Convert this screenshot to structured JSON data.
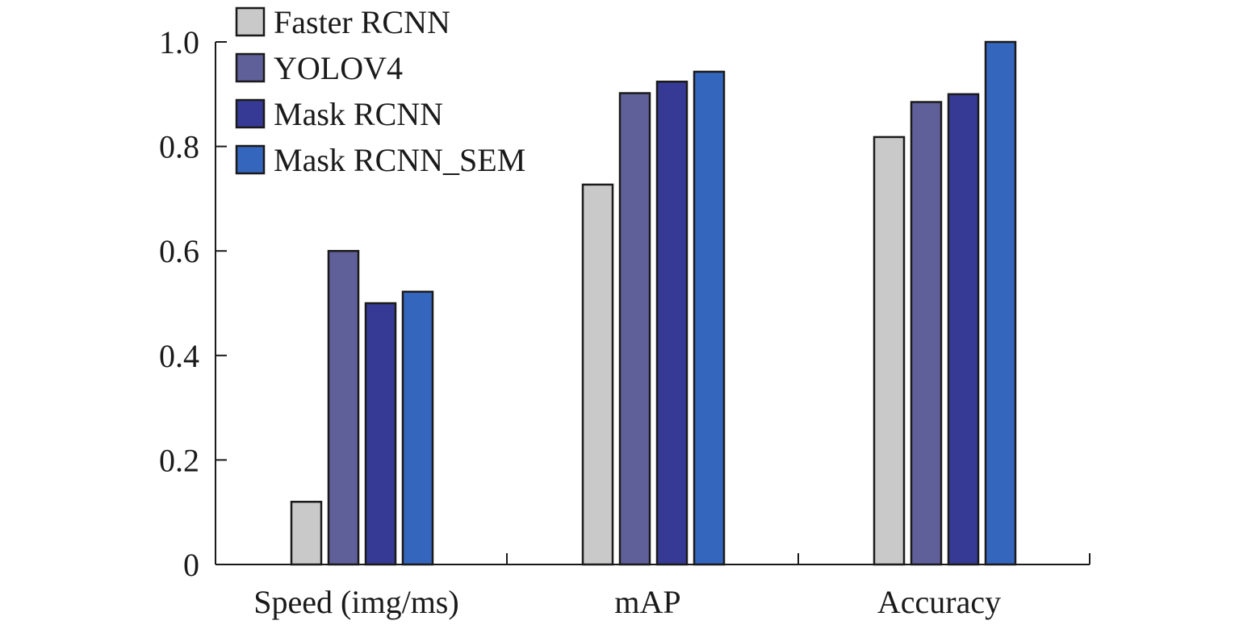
{
  "chart_data": {
    "type": "bar",
    "title": "",
    "xlabel": "",
    "ylabel": "",
    "categories": [
      "Speed (img/ms)",
      "mAP",
      "Accuracy"
    ],
    "series": [
      {
        "name": "Faster RCNN",
        "color": "#c9c9c9",
        "values": [
          0.12,
          0.727,
          0.818
        ]
      },
      {
        "name": "YOLOV4",
        "color": "#5f5f99",
        "values": [
          0.6,
          0.902,
          0.885
        ]
      },
      {
        "name": "Mask RCNN",
        "color": "#363a95",
        "values": [
          0.5,
          0.924,
          0.9
        ]
      },
      {
        "name": "Mask RCNN_SEM",
        "color": "#3566bd",
        "values": [
          0.522,
          0.943,
          1.0
        ]
      }
    ],
    "ylim": [
      0,
      1.0
    ],
    "yticks": [
      0,
      0.2,
      0.4,
      0.6,
      0.8,
      1.0
    ],
    "ytick_labels": [
      "0",
      "0.2",
      "0.4",
      "0.6",
      "0.8",
      "1.0"
    ],
    "grid": false,
    "legend_position": "top-left"
  }
}
